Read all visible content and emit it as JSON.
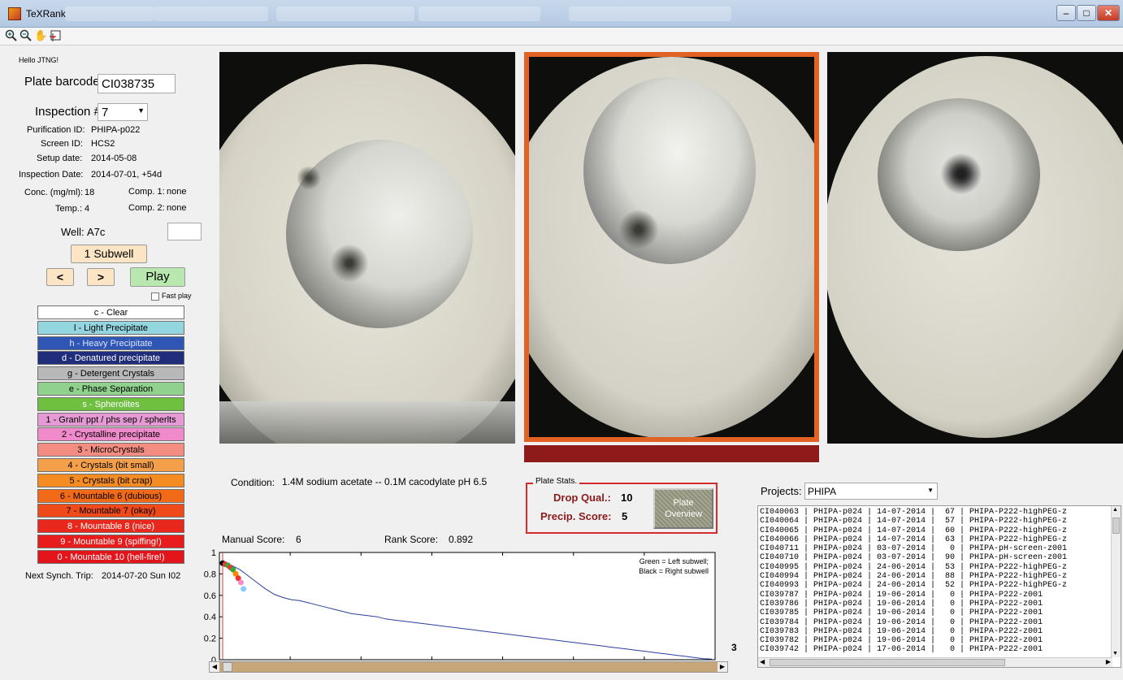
{
  "window": {
    "title": "TeXRank",
    "minimize": "–",
    "maximize": "□",
    "close": "✕"
  },
  "toolbar": {
    "icons": [
      "zoom-in-icon",
      "zoom-out-icon",
      "pan-hand-icon",
      "data-cursor-icon"
    ]
  },
  "greeting": "Hello JTNG!",
  "plate": {
    "barcode_label": "Plate barcode:",
    "barcode_value": "CI038735",
    "inspection_label": "Inspection #:",
    "inspection_value": "7",
    "purification_label": "Purification ID:",
    "purification_value": "PHIPA-p022",
    "screen_label": "Screen ID:",
    "screen_value": "HCS2",
    "setup_label": "Setup date:",
    "setup_value": "2014-05-08",
    "inspection_date_label": "Inspection Date:",
    "inspection_date_value": "2014-07-01, +54d",
    "conc_label": "Conc. (mg/ml):",
    "conc_value": "18",
    "comp1_label": "Comp. 1:",
    "comp1_value": "none",
    "temp_label": "Temp.:",
    "temp_value": "4",
    "comp2_label": "Comp. 2:",
    "comp2_value": "none",
    "well_label": "Well:",
    "well_value": "A7c",
    "well_input": ""
  },
  "controls": {
    "subwell": "1 Subwell",
    "prev": "<",
    "next": ">",
    "play": "Play",
    "fast_play": "Fast play"
  },
  "scores": [
    {
      "label": "c - Clear",
      "bg": "#ffffff",
      "fg": "#000000"
    },
    {
      "label": "l - Light Precipitate",
      "bg": "#93d6e0",
      "fg": "#000000"
    },
    {
      "label": "h - Heavy Precipitate",
      "bg": "#2f56b5",
      "fg": "#dbe4ff"
    },
    {
      "label": "d - Denatured precipitate",
      "bg": "#1f2d7a",
      "fg": "#ffffff"
    },
    {
      "label": "g - Detergent Crystals",
      "bg": "#b8b8b8",
      "fg": "#000000"
    },
    {
      "label": "e - Phase Separation",
      "bg": "#8fd18d",
      "fg": "#000000"
    },
    {
      "label": "s - Spherolites",
      "bg": "#6fc040",
      "fg": "#ffffff"
    },
    {
      "label": "1 - Granlr ppt / phs sep / spherlts",
      "bg": "#e59ad6",
      "fg": "#000000"
    },
    {
      "label": "2 - Crystalline precipitate",
      "bg": "#f08acb",
      "fg": "#000000"
    },
    {
      "label": "3 - MicroCrystals",
      "bg": "#f38d82",
      "fg": "#000000"
    },
    {
      "label": "4 - Crystals (bit small)",
      "bg": "#f4a04a",
      "fg": "#000000"
    },
    {
      "label": "5 - Crystals (bit crap)",
      "bg": "#f48c22",
      "fg": "#000000"
    },
    {
      "label": "6 - Mountable 6 (dubious)",
      "bg": "#f06a18",
      "fg": "#000000"
    },
    {
      "label": "7 - Mountable 7 (okay)",
      "bg": "#ef4a1a",
      "fg": "#000000"
    },
    {
      "label": "8 - Mountable 8 (nice)",
      "bg": "#e8281c",
      "fg": "#ffffff"
    },
    {
      "label": "9 - Mountable 9 (spiffing!)",
      "bg": "#e81c1c",
      "fg": "#ffffff"
    },
    {
      "label": "0 - Mountable 10 (hell-fire!)",
      "bg": "#e3151b",
      "fg": "#ffffff"
    }
  ],
  "next_synch": {
    "label": "Next Synch. Trip:",
    "value": "2014-07-20 Sun I02"
  },
  "condition": {
    "label": "Condition:",
    "value": "1.4M sodium acetate -- 0.1M cacodylate pH 6.5"
  },
  "plate_stats": {
    "title": "Plate Stats.",
    "drop_label": "Drop Qual.:",
    "drop_value": "10",
    "precip_label": "Precip. Score:",
    "precip_value": "5",
    "overview_btn": "Plate Overview"
  },
  "scores_line": {
    "manual_label": "Manual Score:",
    "manual_value": "6",
    "rank_label": "Rank Score:",
    "rank_value": "0.892"
  },
  "chart_data": {
    "type": "line",
    "legend_text": [
      "Green = Left subwell;",
      "Black = Right subwell"
    ],
    "legend_position": "top-right",
    "ylim": [
      0,
      1
    ],
    "yticks": [
      "0",
      "0.2",
      "0.4",
      "0.6",
      "0.8",
      "1"
    ],
    "series": [
      {
        "values": [
          0.9,
          0.88,
          0.84,
          0.78,
          0.72,
          0.66,
          0.61,
          0.58,
          0.56,
          0.55,
          0.53,
          0.51,
          0.49,
          0.47,
          0.45,
          0.43,
          0.42,
          0.41,
          0.4,
          0.38,
          0.37,
          0.36,
          0.35,
          0.34,
          0.33,
          0.32,
          0.31,
          0.3,
          0.29,
          0.28,
          0.27,
          0.26,
          0.25,
          0.24,
          0.23,
          0.22,
          0.21,
          0.2,
          0.19,
          0.18,
          0.17,
          0.16,
          0.15,
          0.14,
          0.13,
          0.12,
          0.11,
          0.1,
          0.09,
          0.08,
          0.07,
          0.06,
          0.05,
          0.04,
          0.03,
          0.02,
          0.01,
          0.005
        ]
      }
    ],
    "side_value": "3"
  },
  "projects": {
    "label": "Projects:",
    "selected": "PHIPA",
    "rows": [
      "CI040063 | PHIPA-p024 | 14-07-2014 |  67 | PHIPA-P222-highPEG-z",
      "CI040064 | PHIPA-p024 | 14-07-2014 |  57 | PHIPA-P222-highPEG-z",
      "CI040065 | PHIPA-p024 | 14-07-2014 |  60 | PHIPA-P222-highPEG-z",
      "CI040066 | PHIPA-p024 | 14-07-2014 |  63 | PHIPA-P222-highPEG-z",
      "CI040711 | PHIPA-p024 | 03-07-2014 |   0 | PHIPA-pH-screen-z001",
      "CI040710 | PHIPA-p024 | 03-07-2014 |  90 | PHIPA-pH-screen-z001",
      "CI040995 | PHIPA-p024 | 24-06-2014 |  53 | PHIPA-P222-highPEG-z",
      "CI040994 | PHIPA-p024 | 24-06-2014 |  88 | PHIPA-P222-highPEG-z",
      "CI040993 | PHIPA-p024 | 24-06-2014 |  52 | PHIPA-P222-highPEG-z",
      "CI039787 | PHIPA-p024 | 19-06-2014 |   0 | PHIPA-P222-z001",
      "CI039786 | PHIPA-p024 | 19-06-2014 |   0 | PHIPA-P222-z001",
      "CI039785 | PHIPA-p024 | 19-06-2014 |   0 | PHIPA-P222-z001",
      "CI039784 | PHIPA-p024 | 19-06-2014 |   0 | PHIPA-P222-z001",
      "CI039783 | PHIPA-p024 | 19-06-2014 |   0 | PHIPA-P222-z001",
      "CI039782 | PHIPA-p024 | 19-06-2014 |   0 | PHIPA-P222-z001",
      "CI039742 | PHIPA-p024 | 17-06-2014 |   0 | PHIPA-P222-z001"
    ]
  }
}
